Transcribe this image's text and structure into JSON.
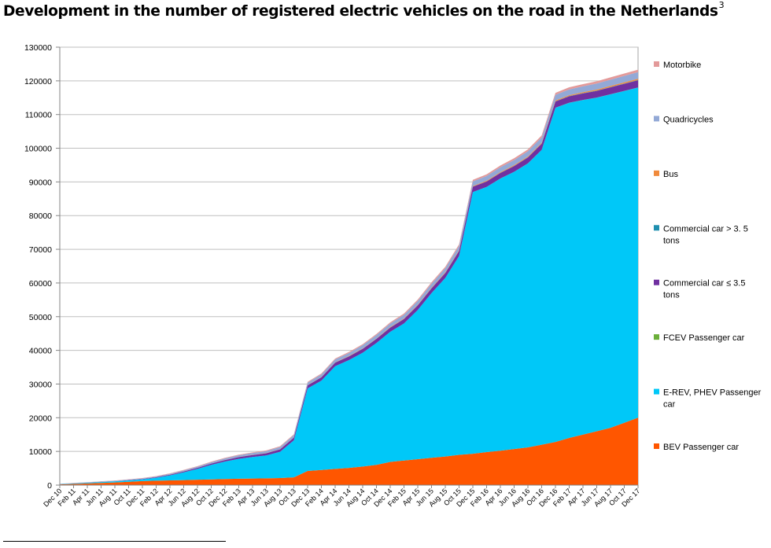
{
  "title": "Development in the number of registered electric vehicles on the road in the Netherlands",
  "title_footnote_marker": "3",
  "chart_data": {
    "type": "area",
    "stacked": true,
    "grid": true,
    "legend_placement": "right",
    "ylim": [
      0,
      130000
    ],
    "y_ticks": [
      "0",
      "10000",
      "20000",
      "30000",
      "40000",
      "50000",
      "60000",
      "70000",
      "80000",
      "90000",
      "100000",
      "110000",
      "120000",
      "130000"
    ],
    "x_ticks": [
      "Dec 10",
      "Feb 11",
      "Apr 11",
      "Jun 11",
      "Aug 11",
      "Oct 11",
      "Dec 11",
      "Feb 12",
      "Apr 12",
      "Jun 12",
      "Aug 12",
      "Oct 12",
      "Dec 12",
      "Feb 13",
      "Apr 13",
      "Jun 13",
      "Aug 13",
      "Oct 13",
      "Dec 13",
      "Feb 14",
      "Apr 14",
      "Jun 14",
      "Aug 14",
      "Oct 14",
      "Dec 14",
      "Feb 15",
      "Apr 15",
      "Jun 15",
      "Aug 15",
      "Oct 15",
      "Dec 15",
      "Feb 16",
      "Apr 16",
      "Jun 16",
      "Aug 16",
      "Oct 16",
      "Dec 16",
      "Feb 17",
      "Apr 17",
      "Jun 17",
      "Aug 17",
      "Oct 17",
      "Dec 17"
    ],
    "series": [
      {
        "name": "BEV Passenger car",
        "color": "#FF5600",
        "values": [
          200,
          350,
          500,
          650,
          800,
          1000,
          1200,
          1300,
          1400,
          1500,
          1600,
          1700,
          1800,
          1900,
          1950,
          2000,
          2100,
          2300,
          4200,
          4500,
          4800,
          5100,
          5500,
          6000,
          6900,
          7300,
          7700,
          8100,
          8500,
          9000,
          9300,
          9800,
          10200,
          10700,
          11200,
          12000,
          12800,
          14000,
          15000,
          16000,
          17000,
          18500,
          20000
        ]
      },
      {
        "name": "E-REV, PHEV Passenger car",
        "color": "#00C8F8",
        "values": [
          100,
          150,
          200,
          250,
          300,
          400,
          500,
          900,
          1500,
          2300,
          3200,
          4300,
          5200,
          5900,
          6400,
          6800,
          7800,
          11000,
          24500,
          26500,
          30500,
          32000,
          33800,
          36200,
          38600,
          40700,
          44300,
          48900,
          53000,
          59000,
          77700,
          78700,
          80800,
          82300,
          84300,
          87500,
          99200,
          99500,
          99300,
          99000,
          99000,
          98500,
          98000
        ]
      },
      {
        "name": "FCEV Passenger car",
        "color": "#6BAF3A",
        "values": [
          0,
          0,
          0,
          0,
          0,
          0,
          0,
          0,
          0,
          0,
          0,
          0,
          0,
          0,
          0,
          0,
          0,
          0,
          0,
          0,
          0,
          0,
          0,
          0,
          0,
          0,
          0,
          0,
          0,
          0,
          10,
          10,
          10,
          10,
          20,
          20,
          20,
          20,
          20,
          30,
          30,
          30,
          30
        ]
      },
      {
        "name": "Commercial car ≤ 3.5 tons",
        "color": "#7030A0",
        "values": [
          0,
          20,
          30,
          40,
          50,
          80,
          100,
          150,
          200,
          260,
          320,
          380,
          450,
          520,
          580,
          650,
          720,
          800,
          900,
          1000,
          1050,
          1100,
          1150,
          1200,
          1250,
          1300,
          1350,
          1400,
          1450,
          1500,
          1550,
          1600,
          1650,
          1700,
          1750,
          1800,
          1850,
          1900,
          1950,
          2000,
          2050,
          2100,
          2150
        ]
      },
      {
        "name": "Commercial car > 3. 5 tons",
        "color": "#1F8FAF",
        "values": [
          0,
          0,
          0,
          0,
          0,
          0,
          0,
          0,
          0,
          0,
          0,
          0,
          0,
          10,
          10,
          10,
          10,
          20,
          20,
          20,
          20,
          30,
          30,
          30,
          30,
          40,
          40,
          40,
          40,
          50,
          50,
          50,
          50,
          60,
          60,
          60,
          60,
          70,
          70,
          70,
          80,
          80,
          80
        ]
      },
      {
        "name": "Bus",
        "color": "#F08A3C",
        "values": [
          0,
          0,
          0,
          0,
          0,
          0,
          10,
          10,
          10,
          20,
          20,
          20,
          30,
          30,
          40,
          40,
          50,
          50,
          60,
          70,
          80,
          90,
          100,
          110,
          120,
          130,
          140,
          150,
          160,
          170,
          180,
          190,
          200,
          210,
          220,
          240,
          260,
          280,
          300,
          320,
          340,
          360,
          380
        ]
      },
      {
        "name": "Quadricycles",
        "color": "#93A9D6",
        "values": [
          50,
          70,
          90,
          110,
          130,
          150,
          170,
          200,
          250,
          300,
          350,
          400,
          450,
          500,
          550,
          600,
          650,
          700,
          750,
          800,
          850,
          900,
          950,
          1000,
          1050,
          1100,
          1150,
          1200,
          1250,
          1300,
          1350,
          1400,
          1450,
          1500,
          1550,
          1600,
          1650,
          1700,
          1750,
          1800,
          1850,
          1900,
          1950
        ]
      },
      {
        "name": "Motorbike",
        "color": "#E39A9A",
        "values": [
          50,
          60,
          70,
          80,
          90,
          100,
          110,
          120,
          130,
          140,
          150,
          160,
          170,
          180,
          190,
          200,
          210,
          220,
          240,
          260,
          280,
          300,
          320,
          340,
          360,
          380,
          400,
          420,
          440,
          460,
          480,
          500,
          520,
          540,
          560,
          580,
          600,
          620,
          640,
          660,
          680,
          700,
          720
        ]
      }
    ],
    "legend_order": [
      "Motorbike",
      "Quadricycles",
      "Bus",
      "Commercial car > 3. 5 tons",
      "Commercial car ≤ 3.5 tons",
      "FCEV Passenger car",
      "E-REV, PHEV Passenger car",
      "BEV Passenger car"
    ]
  }
}
